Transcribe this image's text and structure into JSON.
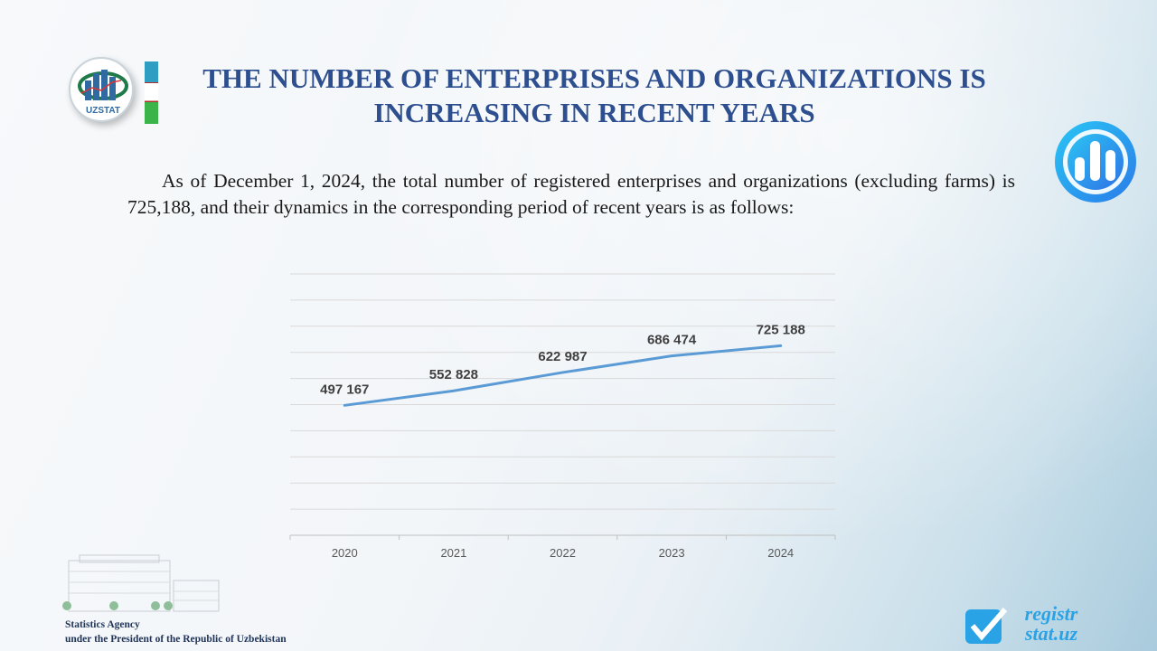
{
  "header": {
    "title": "THE NUMBER OF ENTERPRISES AND ORGANIZATIONS  IS INCREASING  IN RECENT YEARS",
    "logo_text": "UZSTAT"
  },
  "body": {
    "paragraph": "As of December 1, 2024, the total number of registered enterprises and organizations (excluding farms) is 725,188, and their dynamics in the corresponding period of recent years is as follows:"
  },
  "footer": {
    "line1": "Statistics Agency",
    "line2": "under  the  President  of  the  Republic  of Uzbekistan",
    "brand": "registr stat.uz"
  },
  "colors": {
    "title": "#2e4f8f",
    "line": "#5b9bd5",
    "grid": "#d9d9d9"
  },
  "chart_data": {
    "type": "line",
    "categories": [
      "2020",
      "2021",
      "2022",
      "2023",
      "2024"
    ],
    "values": [
      497167,
      552828,
      622987,
      686474,
      725188
    ],
    "data_labels": [
      "497 167",
      "552 828",
      "622 987",
      "686 474",
      "725 188"
    ],
    "ylim": [
      0,
      1000000
    ],
    "grid": true,
    "y_ticks_visible": false,
    "legend": "none"
  }
}
